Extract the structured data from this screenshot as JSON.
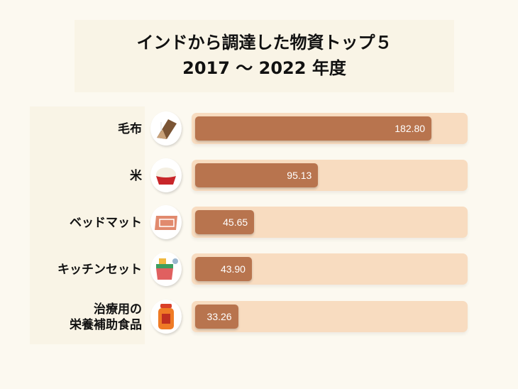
{
  "title_line1": "インドから調達した物資トップ５",
  "title_line2": "2017 ～ 2022 年度",
  "chart_data": {
    "type": "bar",
    "orientation": "horizontal",
    "title": "インドから調達した物資トップ５ 2017 ～ 2022 年度",
    "categories": [
      "毛布",
      "米",
      "ベッドマット",
      "キッチンセット",
      "治療用の栄養補助食品"
    ],
    "values": [
      182.8,
      95.13,
      45.65,
      43.9,
      33.26
    ],
    "value_labels": [
      "182.80",
      "95.13",
      "45.65",
      "43.90",
      "33.26"
    ],
    "icons": [
      "blanket-icon",
      "rice-bowl-icon",
      "mat-icon",
      "kitchen-set-icon",
      "nutrition-jar-icon"
    ],
    "label_lines": [
      [
        "毛布"
      ],
      [
        "米"
      ],
      [
        "ベッドマット"
      ],
      [
        "キッチンセット"
      ],
      [
        "治療用の",
        "栄養補助食品"
      ]
    ],
    "bar_color": "#b8744e",
    "track_color": "#f8dcc0",
    "xlim": [
      0,
      208
    ]
  }
}
